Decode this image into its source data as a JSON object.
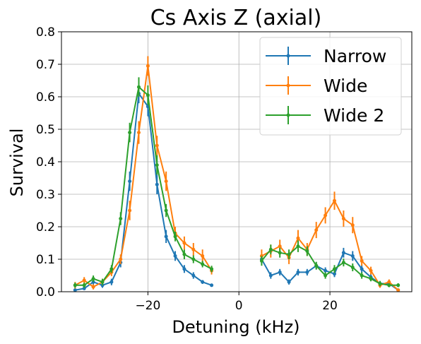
{
  "chart_data": {
    "type": "line",
    "title": "Cs Axis Z (axial)",
    "xlabel": "Detuning (kHz)",
    "ylabel": "Survival",
    "xlim": [
      -39,
      38
    ],
    "ylim": [
      0,
      0.8
    ],
    "xticks": [
      -20,
      0,
      20
    ],
    "xtick_labels": [
      "−20",
      "0",
      "20"
    ],
    "yticks": [
      0.0,
      0.1,
      0.2,
      0.3,
      0.4,
      0.5,
      0.6,
      0.7,
      0.8
    ],
    "ytick_labels": [
      "0.0",
      "0.1",
      "0.2",
      "0.3",
      "0.4",
      "0.5",
      "0.6",
      "0.7",
      "0.8"
    ],
    "grid": true,
    "legend_position": "top-right",
    "series": [
      {
        "name": "Narrow",
        "color": "#1f77b4",
        "segments": [
          {
            "x": [
              -36,
              -34,
              -32,
              -30,
              -28,
              -26,
              -24,
              -22,
              -20,
              -18,
              -16,
              -14,
              -12,
              -10,
              -8,
              -6
            ],
            "y": [
              0.005,
              0.01,
              0.03,
              0.02,
              0.03,
              0.09,
              0.34,
              0.61,
              0.57,
              0.33,
              0.17,
              0.11,
              0.07,
              0.05,
              0.03,
              0.02
            ],
            "err": [
              0.005,
              0.005,
              0.008,
              0.008,
              0.01,
              0.015,
              0.03,
              0.03,
              0.03,
              0.03,
              0.02,
              0.015,
              0.012,
              0.01,
              0.006,
              0.005
            ]
          },
          {
            "x": [
              5,
              7,
              9,
              11,
              13,
              15,
              17,
              19,
              21,
              23,
              25,
              27,
              29,
              31,
              33,
              35
            ],
            "y": [
              0.1,
              0.05,
              0.06,
              0.03,
              0.06,
              0.06,
              0.08,
              0.065,
              0.055,
              0.12,
              0.11,
              0.07,
              0.045,
              0.025,
              0.025,
              0.005
            ],
            "err": [
              0.015,
              0.01,
              0.01,
              0.008,
              0.01,
              0.01,
              0.01,
              0.01,
              0.01,
              0.015,
              0.015,
              0.012,
              0.01,
              0.008,
              0.008,
              0.005
            ]
          }
        ]
      },
      {
        "name": "Wide",
        "color": "#ff7f0e",
        "segments": [
          {
            "x": [
              -36,
              -34,
              -32,
              -30,
              -28,
              -26,
              -24,
              -22,
              -20,
              -18,
              -16,
              -14,
              -12,
              -10,
              -8,
              -6
            ],
            "y": [
              0.02,
              0.035,
              0.015,
              0.03,
              0.06,
              0.1,
              0.25,
              0.49,
              0.695,
              0.45,
              0.34,
              0.18,
              0.15,
              0.13,
              0.11,
              0.065
            ],
            "err": [
              0.01,
              0.01,
              0.008,
              0.01,
              0.012,
              0.015,
              0.03,
              0.035,
              0.03,
              0.03,
              0.03,
              0.02,
              0.02,
              0.02,
              0.02,
              0.012
            ]
          },
          {
            "x": [
              5,
              7,
              9,
              11,
              13,
              15,
              17,
              19,
              21,
              23,
              25,
              27,
              29,
              31,
              33,
              35
            ],
            "y": [
              0.11,
              0.125,
              0.14,
              0.105,
              0.165,
              0.13,
              0.19,
              0.235,
              0.28,
              0.225,
              0.205,
              0.095,
              0.065,
              0.02,
              0.03,
              0.005
            ],
            "err": [
              0.02,
              0.02,
              0.02,
              0.02,
              0.025,
              0.02,
              0.025,
              0.025,
              0.028,
              0.025,
              0.025,
              0.015,
              0.012,
              0.008,
              0.008,
              0.005
            ]
          }
        ]
      },
      {
        "name": "Wide 2",
        "color": "#2ca02c",
        "segments": [
          {
            "x": [
              -36,
              -34,
              -32,
              -30,
              -28,
              -26,
              -24,
              -22,
              -20,
              -18,
              -16,
              -14,
              -12,
              -10,
              -8,
              -6
            ],
            "y": [
              0.02,
              0.02,
              0.04,
              0.03,
              0.07,
              0.225,
              0.49,
              0.63,
              0.605,
              0.39,
              0.25,
              0.17,
              0.115,
              0.1,
              0.085,
              0.07
            ],
            "err": [
              0.008,
              0.008,
              0.01,
              0.01,
              0.012,
              0.02,
              0.03,
              0.03,
              0.03,
              0.03,
              0.02,
              0.015,
              0.015,
              0.012,
              0.01,
              0.01
            ]
          },
          {
            "x": [
              5,
              7,
              9,
              11,
              13,
              15,
              17,
              19,
              21,
              23,
              25,
              27,
              29,
              31,
              33,
              35
            ],
            "y": [
              0.095,
              0.13,
              0.12,
              0.115,
              0.14,
              0.125,
              0.08,
              0.05,
              0.07,
              0.09,
              0.075,
              0.05,
              0.04,
              0.025,
              0.02,
              0.02
            ],
            "err": [
              0.015,
              0.015,
              0.015,
              0.015,
              0.018,
              0.015,
              0.012,
              0.01,
              0.012,
              0.012,
              0.012,
              0.01,
              0.008,
              0.008,
              0.006,
              0.006
            ]
          }
        ]
      }
    ]
  }
}
